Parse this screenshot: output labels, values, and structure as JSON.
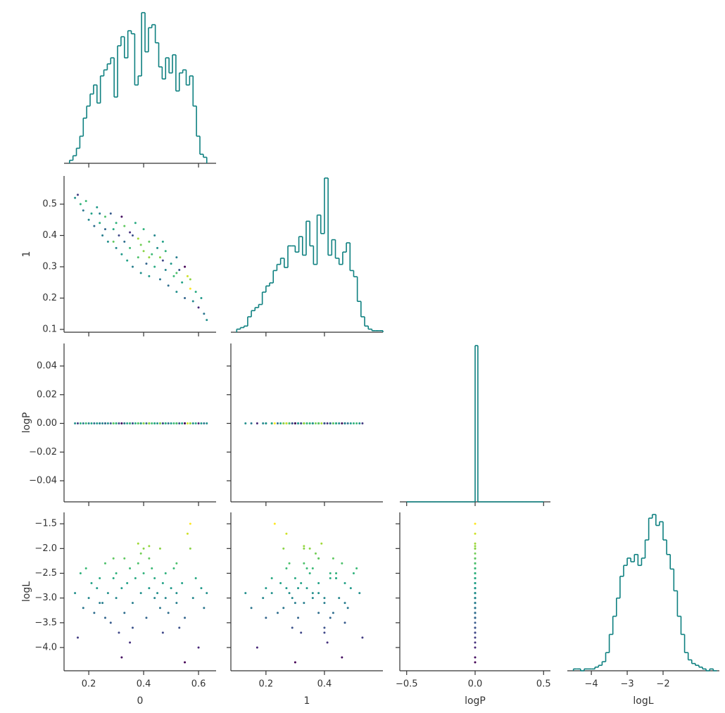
{
  "chart_data": {
    "type": "corner",
    "cmap": "viridis",
    "color_by": 3,
    "hist_color": "#0e8080",
    "variables": [
      {
        "label": "0",
        "values": [
          0.15,
          0.17,
          0.18,
          0.19,
          0.2,
          0.21,
          0.22,
          0.23,
          0.24,
          0.25,
          0.26,
          0.27,
          0.28,
          0.29,
          0.3,
          0.3,
          0.31,
          0.32,
          0.33,
          0.33,
          0.34,
          0.35,
          0.35,
          0.36,
          0.37,
          0.38,
          0.38,
          0.39,
          0.39,
          0.4,
          0.4,
          0.41,
          0.42,
          0.42,
          0.43,
          0.44,
          0.44,
          0.45,
          0.46,
          0.46,
          0.47,
          0.48,
          0.48,
          0.49,
          0.5,
          0.51,
          0.52,
          0.52,
          0.53,
          0.54,
          0.55,
          0.55,
          0.56,
          0.57,
          0.57,
          0.58,
          0.59,
          0.6,
          0.61,
          0.62,
          0.32,
          0.36,
          0.26,
          0.42,
          0.29,
          0.47,
          0.52,
          0.24,
          0.63,
          0.16
        ],
        "xlim": [
          0.11,
          0.664
        ],
        "xticks": [
          0.2,
          0.4,
          0.6
        ],
        "hist": {
          "bins": [
            0.13,
            0.1425,
            0.155,
            0.1675,
            0.18,
            0.1925,
            0.205,
            0.2175,
            0.23,
            0.2425,
            0.255,
            0.2675,
            0.28,
            0.2925,
            0.305,
            0.3175,
            0.33,
            0.3425,
            0.355,
            0.3675,
            0.38,
            0.3925,
            0.405,
            0.4175,
            0.43,
            0.4425,
            0.455,
            0.4675,
            0.48,
            0.4925,
            0.505,
            0.5175,
            0.53,
            0.5425,
            0.555,
            0.5675,
            0.58,
            0.5925,
            0.605,
            0.6175,
            0.63
          ],
          "counts": [
            2,
            5,
            10,
            18,
            30,
            38,
            46,
            52,
            40,
            58,
            62,
            66,
            70,
            44,
            78,
            84,
            70,
            88,
            86,
            52,
            58,
            100,
            74,
            90,
            92,
            80,
            64,
            56,
            70,
            60,
            72,
            48,
            60,
            62,
            52,
            58,
            38,
            18,
            6,
            4
          ]
        }
      },
      {
        "label": "1",
        "values": [
          0.52,
          0.5,
          0.48,
          0.51,
          0.45,
          0.47,
          0.43,
          0.49,
          0.44,
          0.4,
          0.46,
          0.38,
          0.47,
          0.42,
          0.36,
          0.44,
          0.4,
          0.34,
          0.43,
          0.38,
          0.32,
          0.41,
          0.36,
          0.3,
          0.44,
          0.39,
          0.33,
          0.37,
          0.28,
          0.42,
          0.35,
          0.31,
          0.38,
          0.27,
          0.34,
          0.4,
          0.3,
          0.36,
          0.26,
          0.33,
          0.38,
          0.29,
          0.35,
          0.24,
          0.31,
          0.27,
          0.33,
          0.22,
          0.29,
          0.25,
          0.2,
          0.3,
          0.27,
          0.23,
          0.26,
          0.19,
          0.22,
          0.17,
          0.2,
          0.15,
          0.46,
          0.4,
          0.42,
          0.33,
          0.38,
          0.32,
          0.28,
          0.47,
          0.13,
          0.53
        ],
        "xlim": [
          0.08,
          0.6
        ],
        "xticks": [
          0.2,
          0.4
        ],
        "ylim": [
          0.091,
          0.59
        ],
        "yticks": [
          0.1,
          0.2,
          0.3,
          0.4,
          0.5
        ],
        "hist": {
          "bins": [
            0.1,
            0.1125,
            0.125,
            0.1375,
            0.15,
            0.1625,
            0.175,
            0.1875,
            0.2,
            0.2125,
            0.225,
            0.2375,
            0.25,
            0.2625,
            0.275,
            0.2875,
            0.3,
            0.3125,
            0.325,
            0.3375,
            0.35,
            0.3625,
            0.375,
            0.3875,
            0.4,
            0.4125,
            0.425,
            0.4375,
            0.45,
            0.4625,
            0.475,
            0.4875,
            0.5,
            0.5125,
            0.525,
            0.5375,
            0.55,
            0.5625,
            0.575,
            0.5875,
            0.6
          ],
          "counts": [
            2,
            3,
            4,
            10,
            14,
            16,
            18,
            26,
            30,
            32,
            40,
            44,
            48,
            42,
            56,
            56,
            52,
            62,
            50,
            72,
            56,
            44,
            76,
            64,
            100,
            50,
            60,
            48,
            44,
            52,
            58,
            40,
            36,
            20,
            10,
            4,
            2,
            1,
            1,
            1
          ]
        }
      },
      {
        "label": "logP",
        "values": [
          0,
          0,
          0,
          0,
          0,
          0,
          0,
          0,
          0,
          0,
          0,
          0,
          0,
          0,
          0,
          0,
          0,
          0,
          0,
          0,
          0,
          0,
          0,
          0,
          0,
          0,
          0,
          0,
          0,
          0,
          0,
          0,
          0,
          0,
          0,
          0,
          0,
          0,
          0,
          0,
          0,
          0,
          0,
          0,
          0,
          0,
          0,
          0,
          0,
          0,
          0,
          0,
          0,
          0,
          0,
          0,
          0,
          0,
          0,
          0,
          0,
          0,
          0,
          0,
          0,
          0,
          0,
          0,
          0,
          0
        ],
        "xlim": [
          -0.55,
          0.55
        ],
        "xticks": [
          {
            "value": -0.5,
            "label": "−0.5"
          },
          {
            "value": 0,
            "label": "0.0"
          },
          0.5
        ],
        "ylim": [
          -0.0547,
          0.0557
        ],
        "yticks": [
          {
            "value": -0.04,
            "label": "−0.04"
          },
          {
            "value": -0.02,
            "label": "−0.02"
          },
          {
            "value": 0,
            "label": "0.00"
          },
          0.02,
          0.04
        ],
        "hist": {
          "bins": [
            -0.5,
            -0.48,
            -0.46,
            -0.44,
            -0.42,
            -0.4,
            -0.38,
            -0.36,
            -0.34,
            -0.32,
            -0.3,
            -0.28,
            -0.26,
            -0.24,
            -0.22,
            -0.2,
            -0.18,
            -0.16,
            -0.14,
            -0.12,
            -0.1,
            -0.08,
            -0.06,
            -0.04,
            -0.02,
            0,
            0.02,
            0.04,
            0.06,
            0.08,
            0.1,
            0.12,
            0.14,
            0.16,
            0.18,
            0.2,
            0.22,
            0.24,
            0.26,
            0.28,
            0.3,
            0.32,
            0.34,
            0.36,
            0.38,
            0.4,
            0.42,
            0.44,
            0.46,
            0.48,
            0.5
          ],
          "counts": [
            0,
            0,
            0,
            0,
            0,
            0,
            0,
            0,
            0,
            0,
            0,
            0,
            0,
            0,
            0,
            0,
            0,
            0,
            0,
            0,
            0,
            0,
            0,
            0,
            0,
            70,
            0,
            0,
            0,
            0,
            0,
            0,
            0,
            0,
            0,
            0,
            0,
            0,
            0,
            0,
            0,
            0,
            0,
            0,
            0,
            0,
            0,
            0,
            0,
            0
          ]
        }
      },
      {
        "label": "logL",
        "values": [
          -2.9,
          -2.5,
          -3.2,
          -2.4,
          -3,
          -2.7,
          -3.3,
          -2.8,
          -2.6,
          -3.1,
          -2.3,
          -2.9,
          -3.5,
          -2.6,
          -3,
          -2.5,
          -3.7,
          -2.8,
          -2.2,
          -3.3,
          -2.7,
          -3.9,
          -2.4,
          -3.1,
          -2.6,
          -1.9,
          -2.3,
          -2.1,
          -2.9,
          -2.5,
          -2,
          -3.4,
          -2.2,
          -2.8,
          -2.4,
          -3,
          -2.6,
          -2.9,
          -3.2,
          -2,
          -2.7,
          -3,
          -2.5,
          -3.3,
          -2.8,
          -2.4,
          -3.1,
          -2.9,
          -3.6,
          -2.7,
          -3.4,
          -4.3,
          -1.7,
          -1.5,
          -2,
          -3,
          -2.6,
          -4,
          -2.8,
          -3.2,
          -4.2,
          -3.6,
          -3.4,
          -1.95,
          -2.2,
          -3.7,
          -2.3,
          -3.1,
          -2.9,
          -3.8
        ],
        "xlim": [
          -4.67,
          -0.43
        ],
        "xticks": [
          {
            "value": -4,
            "label": "−4"
          },
          {
            "value": -3,
            "label": "−3"
          },
          {
            "value": -2,
            "label": "−2"
          }
        ],
        "ylim": [
          -4.47,
          -1.27
        ],
        "yticks": [
          {
            "value": -4,
            "label": "−4.0"
          },
          {
            "value": -3.5,
            "label": "−3.5"
          },
          {
            "value": -3,
            "label": "−3.0"
          },
          {
            "value": -2.5,
            "label": "−2.5"
          },
          {
            "value": -2,
            "label": "−2.0"
          },
          {
            "value": -1.5,
            "label": "−1.5"
          }
        ],
        "hist": {
          "bins": [
            -4.5,
            -4.4,
            -4.3,
            -4.2,
            -4.1,
            -4,
            -3.9,
            -3.8,
            -3.7,
            -3.6,
            -3.5,
            -3.4,
            -3.3,
            -3.2,
            -3.1,
            -3,
            -2.9,
            -2.8,
            -2.7,
            -2.6,
            -2.5,
            -2.4,
            -2.3,
            -2.2,
            -2.1,
            -2,
            -1.9,
            -1.8,
            -1.7,
            -1.6,
            -1.5,
            -1.4,
            -1.3,
            -1.2,
            -1.1,
            -1,
            -0.9,
            -0.8,
            -0.7,
            -0.6,
            -0.5
          ],
          "counts": [
            1,
            1,
            0,
            1,
            1,
            1,
            2,
            3,
            5,
            10,
            20,
            30,
            40,
            52,
            58,
            62,
            60,
            64,
            58,
            62,
            72,
            84,
            86,
            80,
            82,
            72,
            64,
            56,
            44,
            30,
            20,
            10,
            6,
            4,
            3,
            2,
            1,
            0,
            1,
            0
          ]
        }
      }
    ]
  }
}
